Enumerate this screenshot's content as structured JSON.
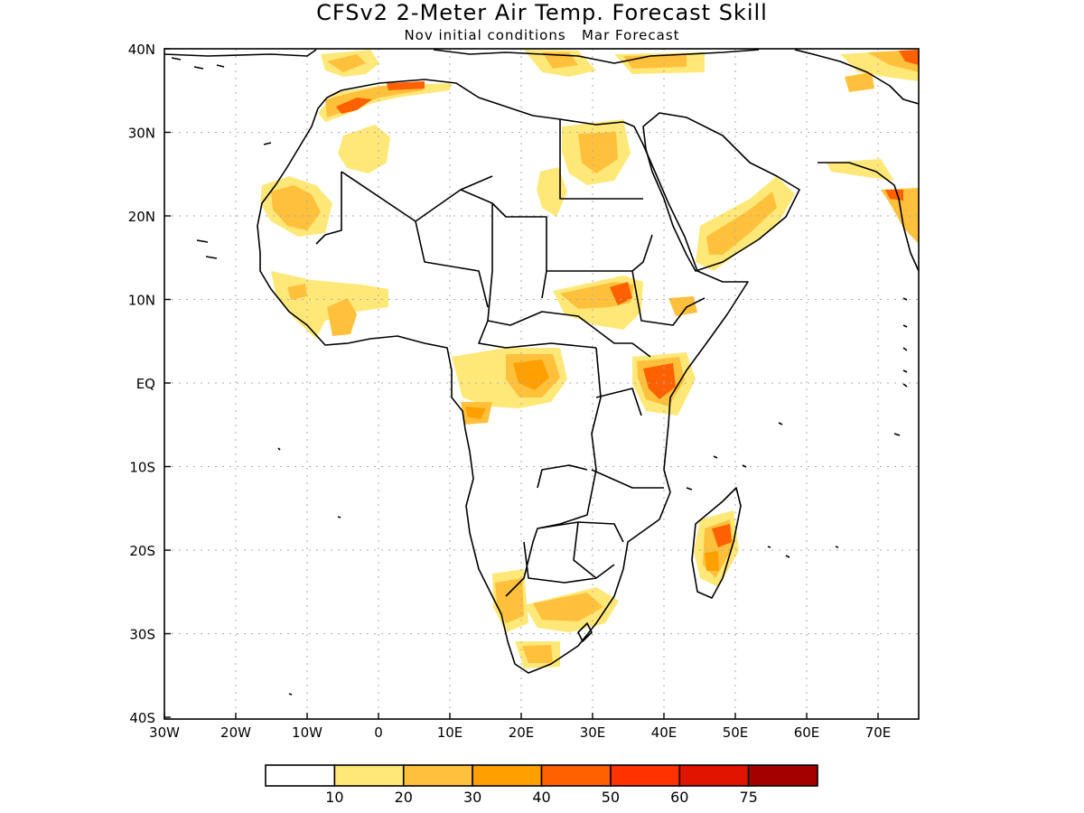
{
  "map": {
    "title": "CFSv2 2-Meter Air Temp. Forecast Skill",
    "subtitle": "Nov initial conditions   Mar Forecast",
    "lon_ticks": [
      "30W",
      "20W",
      "10W",
      "0",
      "10E",
      "20E",
      "30E",
      "40E",
      "50E",
      "60E",
      "70E"
    ],
    "lat_ticks": [
      "40N",
      "30N",
      "20N",
      "10N",
      "EQ",
      "10S",
      "20S",
      "30S",
      "40S"
    ],
    "colorbar": {
      "colors": [
        "#ffffff",
        "#ffe878",
        "#ffc03c",
        "#ffa000",
        "#ff6000",
        "#ff3200",
        "#e11400",
        "#a50000"
      ],
      "labels": [
        "10",
        "20",
        "30",
        "40",
        "50",
        "60",
        "75"
      ]
    }
  }
}
